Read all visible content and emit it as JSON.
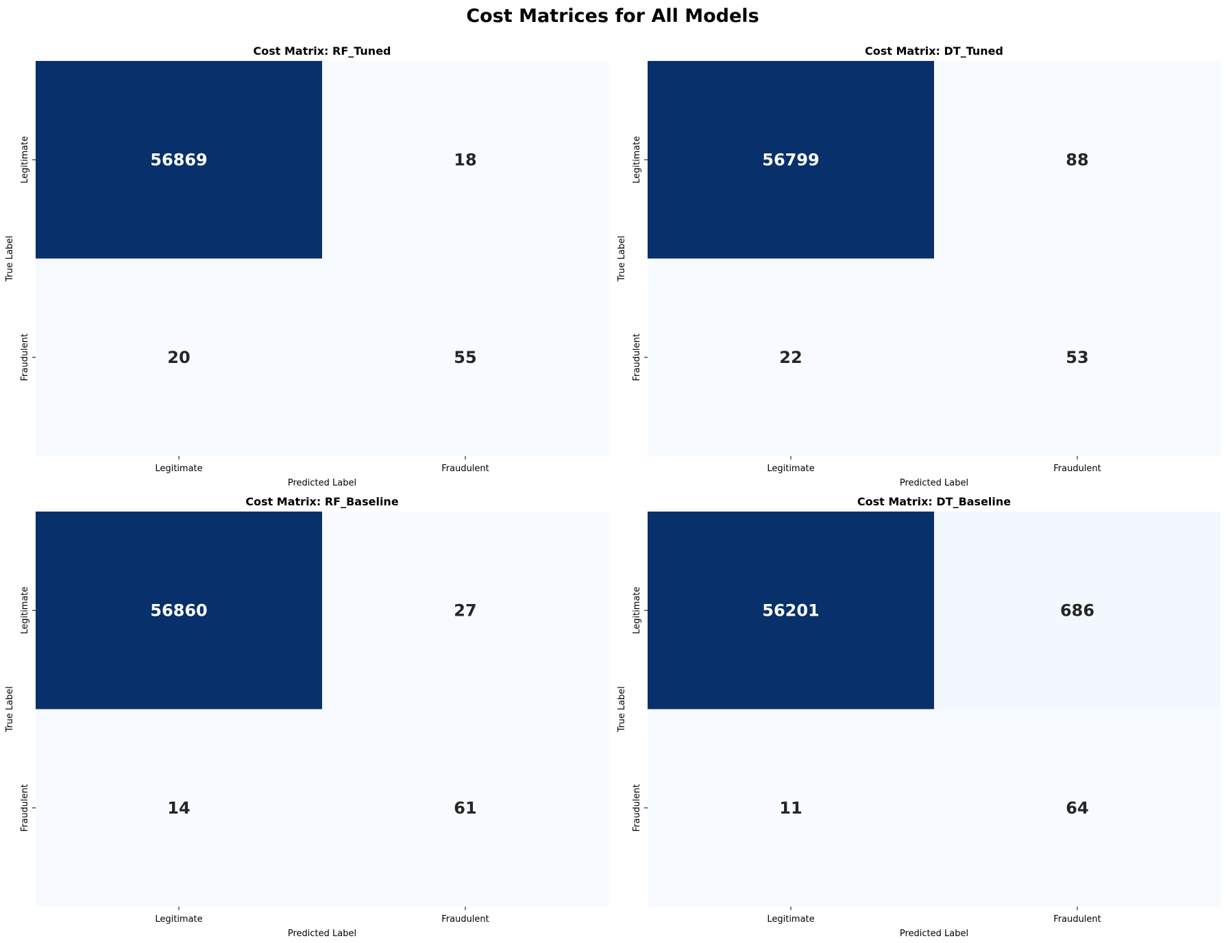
{
  "figure": {
    "title": "Cost Matrices for All Models"
  },
  "colors": {
    "dark": "#08306b",
    "light": "#f7fbff",
    "light_alt": "#f3f8fe",
    "text_on_dark": "#ffffff",
    "text_on_light": "#262626"
  },
  "chart_data": [
    {
      "type": "heatmap",
      "title": "Cost Matrix: RF_Tuned",
      "xlabel": "Predicted Label",
      "ylabel": "True Label",
      "x_categories": [
        "Legitimate",
        "Fraudulent"
      ],
      "y_categories": [
        "Legitimate",
        "Fraudulent"
      ],
      "values": [
        [
          56869,
          18
        ],
        [
          20,
          55
        ]
      ],
      "colorbar": false
    },
    {
      "type": "heatmap",
      "title": "Cost Matrix: DT_Tuned",
      "xlabel": "Predicted Label",
      "ylabel": "True Label",
      "x_categories": [
        "Legitimate",
        "Fraudulent"
      ],
      "y_categories": [
        "Legitimate",
        "Fraudulent"
      ],
      "values": [
        [
          56799,
          88
        ],
        [
          22,
          53
        ]
      ],
      "colorbar": false
    },
    {
      "type": "heatmap",
      "title": "Cost Matrix: RF_Baseline",
      "xlabel": "Predicted Label",
      "ylabel": "True Label",
      "x_categories": [
        "Legitimate",
        "Fraudulent"
      ],
      "y_categories": [
        "Legitimate",
        "Fraudulent"
      ],
      "values": [
        [
          56860,
          27
        ],
        [
          14,
          61
        ]
      ],
      "colorbar": false
    },
    {
      "type": "heatmap",
      "title": "Cost Matrix: DT_Baseline",
      "xlabel": "Predicted Label",
      "ylabel": "True Label",
      "x_categories": [
        "Legitimate",
        "Fraudulent"
      ],
      "y_categories": [
        "Legitimate",
        "Fraudulent"
      ],
      "values": [
        [
          56201,
          686
        ],
        [
          11,
          64
        ]
      ],
      "colorbar": false
    }
  ]
}
